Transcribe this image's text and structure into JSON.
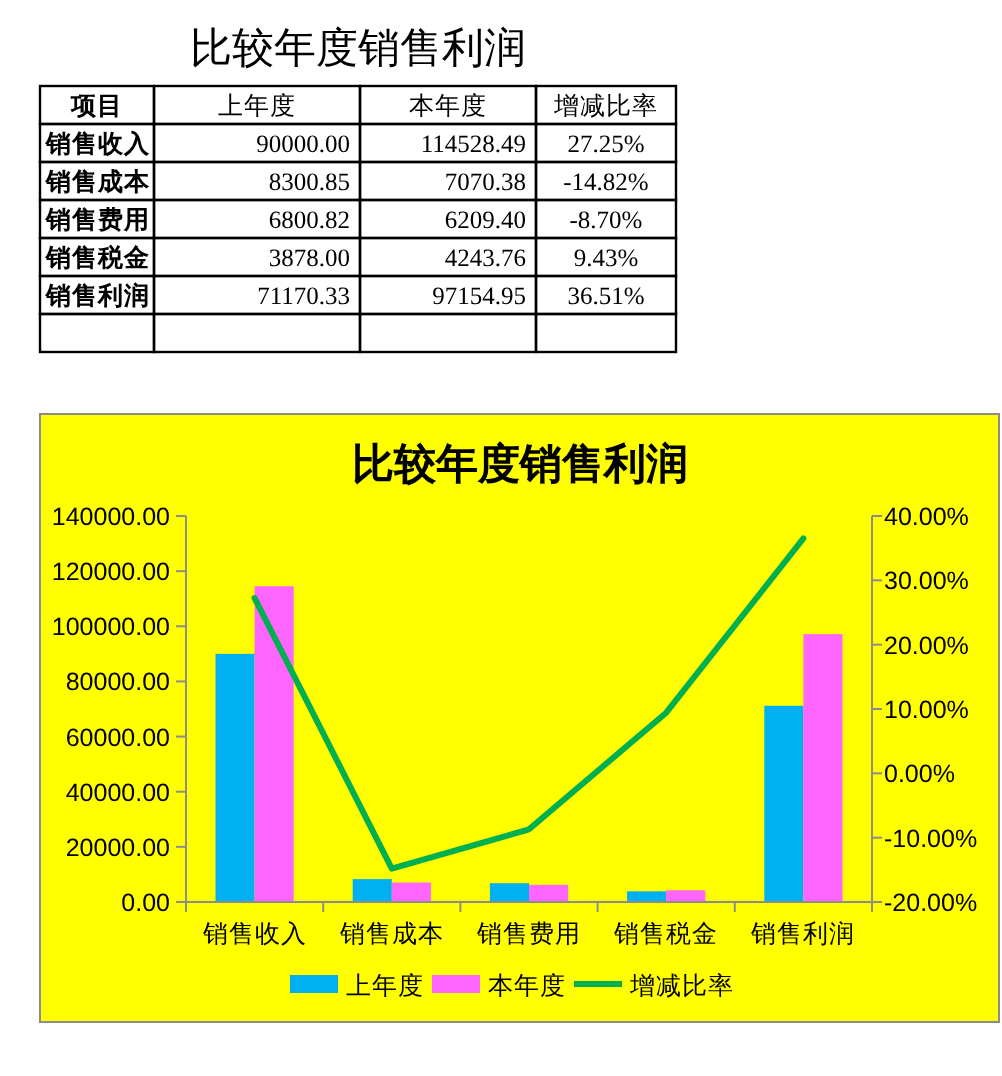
{
  "chart_data": [
    {
      "type": "other",
      "title": "比较年度销售利润",
      "annotations": [
        "项目"
      ],
      "categories": [
        "销售收入",
        "销售成本",
        "销售费用",
        "销售税金",
        "销售利润"
      ],
      "series": [
        {
          "name": "上年度",
          "values": [
            90000,
            8300.85,
            6800.82,
            3878,
            71170.33
          ],
          "value_labels": [
            "90000.00",
            "8300.85",
            "6800.82",
            "3878.00",
            "71170.33"
          ]
        },
        {
          "name": "本年度",
          "values": [
            114528.49,
            7070.38,
            6209.4,
            4243.76,
            97154.95
          ],
          "value_labels": [
            "114528.49",
            "7070.38",
            "6209.40",
            "4243.76",
            "97154.95"
          ]
        },
        {
          "name": "增减比率",
          "values": [
            27.25,
            -14.82,
            -8.7,
            9.43,
            36.51
          ],
          "value_labels": [
            "27.25%",
            "-14.82%",
            "-8.70%",
            "9.43%",
            "36.51%"
          ]
        }
      ]
    },
    {
      "type": "bar",
      "title": "比较年度销售利润",
      "categories": [
        "销售收入",
        "销售成本",
        "销售费用",
        "销售税金",
        "销售利润"
      ],
      "series": [
        {
          "name": "上年度",
          "color": "#00b0f0",
          "values": [
            90000,
            8300.85,
            6800.82,
            3878,
            71170.33
          ]
        },
        {
          "name": "本年度",
          "color": "#ff66ff",
          "values": [
            114528.49,
            7070.38,
            6209.4,
            4243.76,
            97154.95
          ]
        },
        {
          "name": "增减比率",
          "type": "line",
          "axis": "y2",
          "color": "#00b050",
          "values": [
            27.25,
            -14.82,
            -8.7,
            9.43,
            36.51
          ]
        }
      ],
      "ylim": [
        0,
        140000
      ],
      "yticks": [
        {
          "value": 0,
          "label": "0.00"
        },
        {
          "value": 20000,
          "label": "20000.00"
        },
        {
          "value": 40000,
          "label": "40000.00"
        },
        {
          "value": 60000,
          "label": "60000.00"
        },
        {
          "value": 80000,
          "label": "80000.00"
        },
        {
          "value": 100000,
          "label": "100000.00"
        },
        {
          "value": 120000,
          "label": "120000.00"
        },
        {
          "value": 140000,
          "label": "140000.00"
        }
      ],
      "y2lim": [
        -20,
        40
      ],
      "y2ticks": [
        {
          "value": -20,
          "label": "-20.00%"
        },
        {
          "value": -10,
          "label": "-10.00%"
        },
        {
          "value": 0,
          "label": "0.00%"
        },
        {
          "value": 10,
          "label": "10.00%"
        },
        {
          "value": 20,
          "label": "20.00%"
        },
        {
          "value": 30,
          "label": "30.00%"
        },
        {
          "value": 40,
          "label": "40.00%"
        }
      ],
      "legend": "bottom"
    }
  ]
}
